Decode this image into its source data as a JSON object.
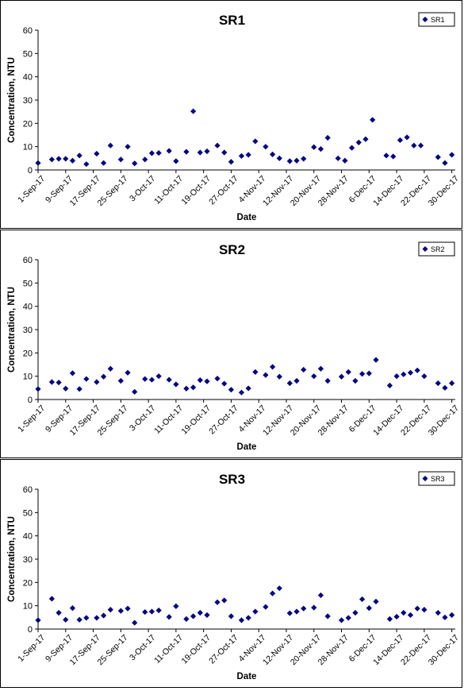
{
  "chart_data": [
    {
      "type": "scatter",
      "title": "SR1",
      "xlabel": "Date",
      "ylabel": "Concentration, NTU",
      "ylim": [
        0,
        60
      ],
      "yticks": [
        0,
        10,
        20,
        30,
        40,
        50,
        60
      ],
      "xticks": [
        "1-Sep-17",
        "9-Sep-17",
        "17-Sep-17",
        "25-Sep-17",
        "3-Oct-17",
        "11-Oct-17",
        "19-Oct-17",
        "27-Oct-17",
        "4-Nov-17",
        "12-Nov-17",
        "20-Nov-17",
        "28-Nov-17",
        "6-Dec-17",
        "14-Dec-17",
        "22-Dec-17",
        "30-Dec-17"
      ],
      "xlim": [
        "2017-09-01",
        "2017-12-31"
      ],
      "legend": "top-right",
      "grid": false,
      "marker_color": "#00008B",
      "series": [
        {
          "name": "SR1",
          "points": [
            [
              "2017-09-01",
              3.0
            ],
            [
              "2017-09-05",
              4.5
            ],
            [
              "2017-09-07",
              4.8
            ],
            [
              "2017-09-09",
              4.8
            ],
            [
              "2017-09-11",
              4.0
            ],
            [
              "2017-09-13",
              6.2
            ],
            [
              "2017-09-15",
              2.5
            ],
            [
              "2017-09-18",
              7.0
            ],
            [
              "2017-09-20",
              3.0
            ],
            [
              "2017-09-22",
              10.5
            ],
            [
              "2017-09-25",
              4.5
            ],
            [
              "2017-09-27",
              10.0
            ],
            [
              "2017-09-29",
              2.8
            ],
            [
              "2017-10-02",
              4.5
            ],
            [
              "2017-10-04",
              7.2
            ],
            [
              "2017-10-06",
              7.3
            ],
            [
              "2017-10-09",
              8.2
            ],
            [
              "2017-10-11",
              3.8
            ],
            [
              "2017-10-14",
              7.8
            ],
            [
              "2017-10-16",
              25.2
            ],
            [
              "2017-10-18",
              7.5
            ],
            [
              "2017-10-20",
              8.0
            ],
            [
              "2017-10-23",
              10.5
            ],
            [
              "2017-10-25",
              7.5
            ],
            [
              "2017-10-27",
              3.5
            ],
            [
              "2017-10-30",
              6.0
            ],
            [
              "2017-11-01",
              6.5
            ],
            [
              "2017-11-03",
              12.3
            ],
            [
              "2017-11-06",
              10.0
            ],
            [
              "2017-11-08",
              6.7
            ],
            [
              "2017-11-10",
              5.0
            ],
            [
              "2017-11-13",
              3.8
            ],
            [
              "2017-11-15",
              4.0
            ],
            [
              "2017-11-17",
              4.8
            ],
            [
              "2017-11-20",
              9.8
            ],
            [
              "2017-11-22",
              9.0
            ],
            [
              "2017-11-24",
              13.8
            ],
            [
              "2017-11-27",
              5.0
            ],
            [
              "2017-11-29",
              4.0
            ],
            [
              "2017-12-01",
              9.5
            ],
            [
              "2017-12-03",
              11.8
            ],
            [
              "2017-12-05",
              13.2
            ],
            [
              "2017-12-07",
              21.5
            ],
            [
              "2017-12-11",
              6.2
            ],
            [
              "2017-12-13",
              5.8
            ],
            [
              "2017-12-15",
              12.8
            ],
            [
              "2017-12-17",
              14.0
            ],
            [
              "2017-12-19",
              10.5
            ],
            [
              "2017-12-21",
              10.5
            ],
            [
              "2017-12-26",
              5.5
            ],
            [
              "2017-12-28",
              3.0
            ],
            [
              "2017-12-30",
              6.5
            ]
          ]
        }
      ]
    },
    {
      "type": "scatter",
      "title": "SR2",
      "xlabel": "Date",
      "ylabel": "Concentration, NTU",
      "ylim": [
        0,
        60
      ],
      "yticks": [
        0,
        10,
        20,
        30,
        40,
        50,
        60
      ],
      "xticks": [
        "1-Sep-17",
        "9-Sep-17",
        "17-Sep-17",
        "25-Sep-17",
        "3-Oct-17",
        "11-Oct-17",
        "19-Oct-17",
        "27-Oct-17",
        "4-Nov-17",
        "12-Nov-17",
        "20-Nov-17",
        "28-Nov-17",
        "6-Dec-17",
        "14-Dec-17",
        "22-Dec-17",
        "30-Dec-17"
      ],
      "xlim": [
        "2017-09-01",
        "2017-12-31"
      ],
      "legend": "top-right",
      "grid": false,
      "marker_color": "#00008B",
      "series": [
        {
          "name": "SR2",
          "points": [
            [
              "2017-09-01",
              4.5
            ],
            [
              "2017-09-05",
              7.5
            ],
            [
              "2017-09-07",
              7.3
            ],
            [
              "2017-09-09",
              4.7
            ],
            [
              "2017-09-11",
              11.3
            ],
            [
              "2017-09-13",
              4.5
            ],
            [
              "2017-09-15",
              8.8
            ],
            [
              "2017-09-18",
              7.5
            ],
            [
              "2017-09-20",
              9.8
            ],
            [
              "2017-09-22",
              13.2
            ],
            [
              "2017-09-25",
              8.0
            ],
            [
              "2017-09-27",
              11.5
            ],
            [
              "2017-09-29",
              3.3
            ],
            [
              "2017-10-02",
              8.8
            ],
            [
              "2017-10-04",
              8.5
            ],
            [
              "2017-10-06",
              10.0
            ],
            [
              "2017-10-09",
              8.5
            ],
            [
              "2017-10-11",
              6.5
            ],
            [
              "2017-10-14",
              4.7
            ],
            [
              "2017-10-16",
              5.2
            ],
            [
              "2017-10-18",
              8.3
            ],
            [
              "2017-10-20",
              7.8
            ],
            [
              "2017-10-23",
              9.0
            ],
            [
              "2017-10-25",
              6.8
            ],
            [
              "2017-10-27",
              4.2
            ],
            [
              "2017-10-30",
              3.0
            ],
            [
              "2017-11-01",
              4.8
            ],
            [
              "2017-11-03",
              11.8
            ],
            [
              "2017-11-06",
              10.5
            ],
            [
              "2017-11-08",
              14.0
            ],
            [
              "2017-11-10",
              9.8
            ],
            [
              "2017-11-13",
              7.0
            ],
            [
              "2017-11-15",
              8.0
            ],
            [
              "2017-11-17",
              12.8
            ],
            [
              "2017-11-20",
              10.0
            ],
            [
              "2017-11-22",
              13.2
            ],
            [
              "2017-11-24",
              8.0
            ],
            [
              "2017-11-28",
              9.8
            ],
            [
              "2017-11-30",
              11.8
            ],
            [
              "2017-12-02",
              8.0
            ],
            [
              "2017-12-04",
              11.0
            ],
            [
              "2017-12-06",
              11.2
            ],
            [
              "2017-12-08",
              17.0
            ],
            [
              "2017-12-12",
              6.0
            ],
            [
              "2017-12-14",
              10.0
            ],
            [
              "2017-12-16",
              10.8
            ],
            [
              "2017-12-18",
              11.5
            ],
            [
              "2017-12-20",
              12.5
            ],
            [
              "2017-12-22",
              10.0
            ],
            [
              "2017-12-26",
              7.0
            ],
            [
              "2017-12-28",
              5.0
            ],
            [
              "2017-12-30",
              7.0
            ]
          ]
        }
      ]
    },
    {
      "type": "scatter",
      "title": "SR3",
      "xlabel": "Date",
      "ylabel": "Concentration, NTU",
      "ylim": [
        0,
        60
      ],
      "yticks": [
        0,
        10,
        20,
        30,
        40,
        50,
        60
      ],
      "xticks": [
        "1-Sep-17",
        "9-Sep-17",
        "17-Sep-17",
        "25-Sep-17",
        "3-Oct-17",
        "11-Oct-17",
        "19-Oct-17",
        "27-Oct-17",
        "4-Nov-17",
        "12-Nov-17",
        "20-Nov-17",
        "28-Nov-17",
        "6-Dec-17",
        "14-Dec-17",
        "22-Dec-17",
        "30-Dec-17"
      ],
      "xlim": [
        "2017-09-01",
        "2017-12-31"
      ],
      "legend": "top-right",
      "grid": false,
      "marker_color": "#00008B",
      "series": [
        {
          "name": "SR3",
          "points": [
            [
              "2017-09-01",
              3.8
            ],
            [
              "2017-09-05",
              13.0
            ],
            [
              "2017-09-07",
              7.0
            ],
            [
              "2017-09-09",
              4.0
            ],
            [
              "2017-09-11",
              9.0
            ],
            [
              "2017-09-13",
              4.0
            ],
            [
              "2017-09-15",
              4.8
            ],
            [
              "2017-09-18",
              4.8
            ],
            [
              "2017-09-20",
              5.8
            ],
            [
              "2017-09-22",
              8.3
            ],
            [
              "2017-09-25",
              7.8
            ],
            [
              "2017-09-27",
              8.8
            ],
            [
              "2017-09-29",
              2.7
            ],
            [
              "2017-10-02",
              7.3
            ],
            [
              "2017-10-04",
              7.5
            ],
            [
              "2017-10-06",
              8.0
            ],
            [
              "2017-10-09",
              5.2
            ],
            [
              "2017-10-11",
              9.8
            ],
            [
              "2017-10-14",
              4.3
            ],
            [
              "2017-10-16",
              5.5
            ],
            [
              "2017-10-18",
              7.0
            ],
            [
              "2017-10-20",
              6.0
            ],
            [
              "2017-10-23",
              11.5
            ],
            [
              "2017-10-25",
              12.3
            ],
            [
              "2017-10-27",
              5.5
            ],
            [
              "2017-10-30",
              3.8
            ],
            [
              "2017-11-01",
              4.8
            ],
            [
              "2017-11-03",
              7.5
            ],
            [
              "2017-11-06",
              9.5
            ],
            [
              "2017-11-08",
              15.3
            ],
            [
              "2017-11-10",
              17.5
            ],
            [
              "2017-11-13",
              6.8
            ],
            [
              "2017-11-15",
              7.5
            ],
            [
              "2017-11-17",
              8.8
            ],
            [
              "2017-11-20",
              9.2
            ],
            [
              "2017-11-22",
              14.5
            ],
            [
              "2017-11-24",
              5.5
            ],
            [
              "2017-11-28",
              3.8
            ],
            [
              "2017-11-30",
              4.8
            ],
            [
              "2017-12-02",
              7.0
            ],
            [
              "2017-12-04",
              12.8
            ],
            [
              "2017-12-06",
              9.0
            ],
            [
              "2017-12-08",
              11.8
            ],
            [
              "2017-12-12",
              4.3
            ],
            [
              "2017-12-14",
              5.3
            ],
            [
              "2017-12-16",
              7.0
            ],
            [
              "2017-12-18",
              6.0
            ],
            [
              "2017-12-20",
              8.8
            ],
            [
              "2017-12-22",
              8.3
            ],
            [
              "2017-12-26",
              7.0
            ],
            [
              "2017-12-28",
              5.0
            ],
            [
              "2017-12-30",
              6.0
            ]
          ]
        }
      ]
    }
  ]
}
